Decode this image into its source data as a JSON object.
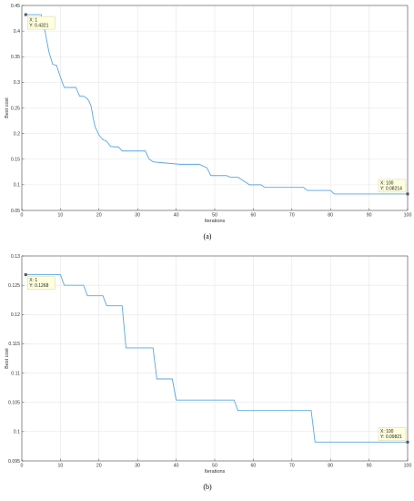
{
  "chart_data": [
    {
      "type": "line",
      "caption": "(a)",
      "xlabel": "Iterations",
      "ylabel": "Best cost",
      "xlim": [
        0,
        100
      ],
      "ylim": [
        0.05,
        0.45
      ],
      "xticks": [
        "0",
        "10",
        "20",
        "30",
        "40",
        "50",
        "60",
        "70",
        "80",
        "90",
        "100"
      ],
      "yticks": [
        "0.05",
        "0.1",
        "0.15",
        "0.2",
        "0.25",
        "0.3",
        "0.35",
        "0.4",
        "0.45"
      ],
      "grid": true,
      "series": [
        {
          "color": "#5aa7dd",
          "x": [
            1,
            5,
            6,
            7,
            8,
            9,
            10,
            11,
            14,
            15,
            16,
            17,
            17.5,
            18,
            18.5,
            19,
            20,
            21,
            22,
            23,
            24,
            25,
            26,
            32,
            33,
            34,
            35,
            41,
            46,
            48,
            49,
            53,
            54,
            56,
            57,
            58,
            59,
            62,
            63,
            73,
            74,
            80,
            81,
            100
          ],
          "y": [
            0.4321,
            0.4321,
            0.4,
            0.36,
            0.335,
            0.333,
            0.31,
            0.29,
            0.29,
            0.273,
            0.273,
            0.268,
            0.262,
            0.252,
            0.23,
            0.213,
            0.197,
            0.188,
            0.185,
            0.175,
            0.174,
            0.174,
            0.166,
            0.166,
            0.15,
            0.145,
            0.144,
            0.14,
            0.14,
            0.133,
            0.118,
            0.118,
            0.115,
            0.115,
            0.11,
            0.105,
            0.1,
            0.1,
            0.095,
            0.095,
            0.089,
            0.089,
            0.08214,
            0.08214
          ]
        }
      ],
      "datatips": [
        {
          "x_label": "X: 1",
          "y_label": "Y: 0.4321",
          "x": 1,
          "y": 0.4321
        },
        {
          "x_label": "X: 100",
          "y_label": "Y: 0.08214",
          "x": 100,
          "y": 0.08214
        }
      ]
    },
    {
      "type": "line",
      "caption": "(b)",
      "xlabel": "Iterations",
      "ylabel": "Best cost",
      "xlim": [
        0,
        100
      ],
      "ylim": [
        0.095,
        0.13
      ],
      "xticks": [
        "0",
        "10",
        "20",
        "30",
        "40",
        "50",
        "60",
        "70",
        "80",
        "90",
        "100"
      ],
      "yticks": [
        "0.095",
        "0.1",
        "0.105",
        "0.11",
        "0.115",
        "0.12",
        "0.125",
        "0.13"
      ],
      "grid": true,
      "series": [
        {
          "color": "#5aa7dd",
          "x": [
            1,
            10,
            11,
            16,
            17,
            21,
            22,
            26,
            27,
            34,
            35,
            39,
            40,
            55,
            56,
            75,
            76,
            100
          ],
          "y": [
            0.1268,
            0.1268,
            0.125,
            0.125,
            0.1232,
            0.1232,
            0.1215,
            0.1215,
            0.1143,
            0.1143,
            0.109,
            0.109,
            0.1054,
            0.1054,
            0.1036,
            0.1036,
            0.09821,
            0.09821
          ]
        }
      ],
      "datatips": [
        {
          "x_label": "X: 1",
          "y_label": "Y: 0.1268",
          "x": 1,
          "y": 0.1268
        },
        {
          "x_label": "X: 100",
          "y_label": "Y: 0.09821",
          "x": 100,
          "y": 0.09821
        }
      ]
    }
  ]
}
